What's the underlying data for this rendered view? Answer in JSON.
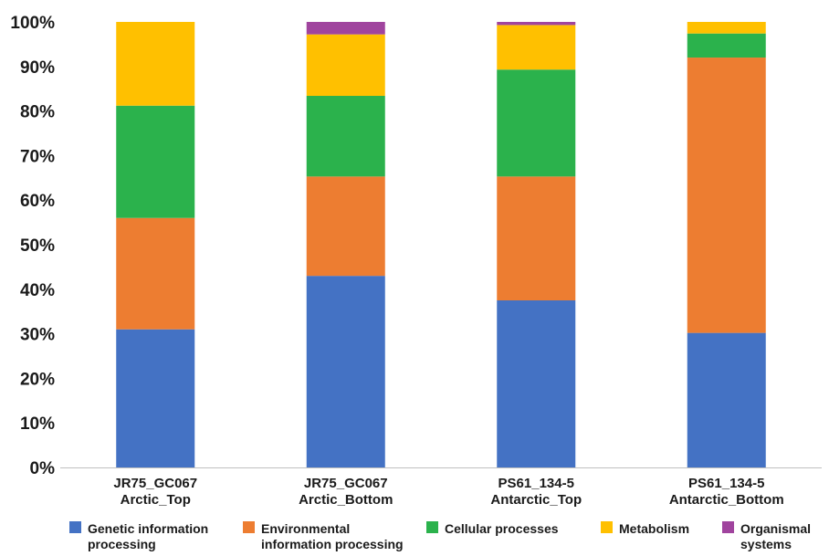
{
  "chart_data": {
    "type": "bar",
    "stacked": true,
    "percent": true,
    "categories": [
      [
        "JR75_GC067",
        "Arctic_Top"
      ],
      [
        "JR75_GC067",
        "Arctic_Bottom"
      ],
      [
        "PS61_134-5",
        "Antarctic_Top"
      ],
      [
        "PS61_134-5",
        "Antarctic_Bottom"
      ]
    ],
    "series": [
      {
        "name": [
          "Genetic information",
          "processing"
        ],
        "color": "#4472C4",
        "values": [
          31.0,
          43.0,
          37.5,
          30.2
        ]
      },
      {
        "name": [
          "Environmental",
          "information processing"
        ],
        "color": "#ED7D31",
        "values": [
          25.0,
          22.3,
          27.8,
          61.8
        ]
      },
      {
        "name": [
          "Cellular processes"
        ],
        "color": "#2BB24C",
        "values": [
          25.2,
          18.1,
          24.0,
          5.4
        ]
      },
      {
        "name": [
          "Metabolism"
        ],
        "color": "#FFC000",
        "values": [
          18.8,
          13.8,
          10.0,
          2.6
        ]
      },
      {
        "name": [
          "Organismal",
          "systems"
        ],
        "color": "#A0449E",
        "values": [
          0.0,
          2.8,
          0.7,
          0.0
        ]
      }
    ],
    "yticks": [
      "0%",
      "10%",
      "20%",
      "30%",
      "40%",
      "50%",
      "60%",
      "70%",
      "80%",
      "90%",
      "100%"
    ],
    "ylim": [
      0,
      100
    ],
    "grid": false,
    "legend_position": "bottom"
  }
}
